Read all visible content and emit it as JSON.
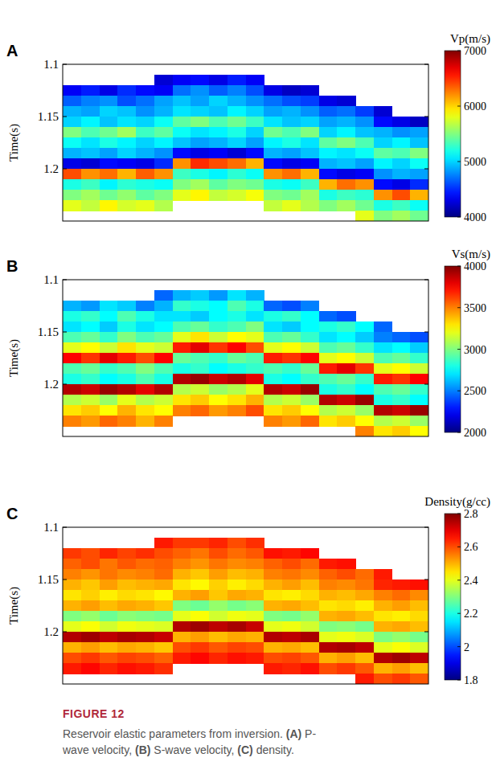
{
  "chart_data": [
    {
      "type": "heatmap",
      "panel_label": "A",
      "y_label": "Time(s)",
      "tick_labels": "y",
      "ylim": [
        1.1,
        1.25
      ],
      "yticks": [
        1.1,
        1.15,
        1.2
      ],
      "y": [
        1.105,
        1.115,
        1.125,
        1.135,
        1.145,
        1.155,
        1.165,
        1.175,
        1.185,
        1.195,
        1.205,
        1.215,
        1.225,
        1.235,
        1.245
      ],
      "colorbar": {
        "title": "Vp(m/s)",
        "range": [
          4000,
          7000
        ],
        "ticks": [
          4000,
          5000,
          6000,
          7000
        ]
      },
      "cells": [
        [
          null,
          null,
          null,
          null,
          null,
          null,
          null,
          null,
          null,
          null,
          null,
          null,
          null,
          null,
          null,
          null,
          null,
          null,
          null,
          null
        ],
        [
          null,
          null,
          null,
          null,
          null,
          4250,
          4350,
          4400,
          4300,
          4450,
          4350,
          null,
          null,
          null,
          null,
          null,
          null,
          null,
          null,
          null
        ],
        [
          4350,
          4450,
          4300,
          4500,
          4400,
          4350,
          4700,
          4800,
          4650,
          4750,
          4600,
          4300,
          4200,
          4250,
          null,
          null,
          null,
          null,
          null,
          null
        ],
        [
          4650,
          4750,
          4800,
          4600,
          4700,
          4850,
          4950,
          4850,
          5000,
          4900,
          4800,
          4700,
          4600,
          4550,
          4300,
          4250,
          null,
          null,
          null,
          null
        ],
        [
          4900,
          4850,
          5000,
          4950,
          4800,
          4900,
          5050,
          5000,
          4950,
          5100,
          5000,
          4850,
          4900,
          4800,
          4650,
          4700,
          4550,
          4250,
          null,
          null
        ],
        [
          5000,
          5100,
          4950,
          5050,
          5000,
          5150,
          5400,
          5500,
          5350,
          5450,
          5300,
          5050,
          4950,
          5000,
          4850,
          4900,
          4800,
          4400,
          4300,
          4200
        ],
        [
          5500,
          5350,
          5450,
          5600,
          5300,
          5400,
          5150,
          5050,
          5100,
          5200,
          5000,
          5450,
          5350,
          5500,
          5000,
          5100,
          4950,
          4900,
          4800,
          4850
        ],
        [
          5150,
          5050,
          5200,
          5100,
          5000,
          5100,
          4950,
          4850,
          4900,
          5000,
          4850,
          5100,
          5200,
          5050,
          5400,
          5500,
          5350,
          5000,
          5100,
          4950
        ],
        [
          4900,
          4950,
          4850,
          5000,
          4900,
          4800,
          4400,
          4300,
          4350,
          4250,
          4400,
          4900,
          4850,
          4950,
          5100,
          5050,
          5150,
          5400,
          5350,
          5500
        ],
        [
          4300,
          4250,
          4400,
          4350,
          4300,
          4500,
          6200,
          6500,
          6400,
          6300,
          6100,
          4400,
          4300,
          4350,
          4900,
          4950,
          4850,
          5100,
          5000,
          5150
        ],
        [
          6400,
          6200,
          6300,
          6100,
          6350,
          6200,
          5300,
          5200,
          5100,
          5250,
          5150,
          6200,
          6300,
          6100,
          4400,
          4300,
          4350,
          4800,
          4900,
          4850
        ],
        [
          5200,
          5300,
          5100,
          5250,
          5200,
          5150,
          5500,
          5600,
          5400,
          5500,
          5450,
          5200,
          5150,
          5300,
          6100,
          6300,
          6200,
          4400,
          4300,
          4500
        ],
        [
          5500,
          5600,
          5450,
          5550,
          5400,
          5500,
          5800,
          5900,
          5700,
          5750,
          5850,
          5500,
          5450,
          5600,
          5200,
          5300,
          5250,
          6200,
          6400,
          6100
        ],
        [
          5800,
          5700,
          5900,
          5750,
          5800,
          5650,
          null,
          null,
          null,
          null,
          null,
          5700,
          5800,
          5650,
          5500,
          5600,
          5450,
          5200,
          5300,
          5150
        ],
        [
          null,
          null,
          null,
          null,
          null,
          null,
          null,
          null,
          null,
          null,
          null,
          null,
          null,
          null,
          null,
          null,
          5800,
          5500,
          5600,
          5450
        ]
      ]
    },
    {
      "type": "heatmap",
      "panel_label": "B",
      "y_label": "Time(s)",
      "tick_labels": "y",
      "ylim": [
        1.1,
        1.25
      ],
      "yticks": [
        1.1,
        1.15,
        1.2
      ],
      "y": [
        1.105,
        1.115,
        1.125,
        1.135,
        1.145,
        1.155,
        1.165,
        1.175,
        1.185,
        1.195,
        1.205,
        1.215,
        1.225,
        1.235,
        1.245
      ],
      "colorbar": {
        "title": "Vs(m/s)",
        "range": [
          2000,
          4000
        ],
        "ticks": [
          2000,
          2500,
          3000,
          3500,
          4000
        ]
      },
      "cells": [
        [
          null,
          null,
          null,
          null,
          null,
          null,
          null,
          null,
          null,
          null,
          null,
          null,
          null,
          null,
          null,
          null,
          null,
          null,
          null,
          null
        ],
        [
          null,
          null,
          null,
          null,
          null,
          2450,
          2600,
          2650,
          2550,
          2700,
          2600,
          null,
          null,
          null,
          null,
          null,
          null,
          null,
          null,
          null
        ],
        [
          2600,
          2550,
          2700,
          2650,
          2500,
          2600,
          2850,
          2800,
          2750,
          2900,
          2800,
          2450,
          2400,
          2500,
          null,
          null,
          null,
          null,
          null,
          null
        ],
        [
          2800,
          2850,
          2750,
          2900,
          2800,
          2700,
          2700,
          2650,
          2750,
          2800,
          2700,
          2800,
          2850,
          2750,
          2450,
          2400,
          null,
          null,
          null,
          null
        ],
        [
          2700,
          2750,
          2650,
          2800,
          2700,
          2750,
          2900,
          2950,
          2850,
          2900,
          3000,
          2700,
          2650,
          2750,
          2800,
          2850,
          2750,
          2450,
          null,
          null
        ],
        [
          2900,
          2950,
          2850,
          3000,
          2900,
          2950,
          3200,
          3300,
          3150,
          3250,
          3200,
          2900,
          2950,
          2850,
          2700,
          2750,
          2650,
          2500,
          2450,
          2400
        ],
        [
          3200,
          3250,
          3150,
          3300,
          3200,
          3150,
          3700,
          3800,
          3650,
          3750,
          3600,
          3200,
          3250,
          3150,
          2900,
          2950,
          2850,
          2700,
          2750,
          2650
        ],
        [
          3750,
          3650,
          3800,
          3700,
          3600,
          3750,
          2950,
          2900,
          2850,
          2950,
          2900,
          3700,
          3650,
          3750,
          3200,
          3250,
          3150,
          2900,
          2950,
          2850
        ],
        [
          2900,
          2950,
          2850,
          2900,
          3000,
          2900,
          2800,
          2850,
          2750,
          2800,
          2850,
          2900,
          2850,
          2950,
          3700,
          3800,
          3650,
          3200,
          3250,
          3150
        ],
        [
          2800,
          2850,
          2750,
          2800,
          2900,
          2800,
          3900,
          3950,
          3850,
          3900,
          3800,
          2800,
          2750,
          2850,
          2900,
          2950,
          2850,
          3700,
          3650,
          3750
        ],
        [
          3900,
          3850,
          3950,
          3900,
          3800,
          3900,
          3100,
          3150,
          3050,
          3100,
          3200,
          3900,
          3850,
          3950,
          2800,
          2850,
          2750,
          2900,
          2950,
          2850
        ],
        [
          3100,
          3150,
          3050,
          3200,
          3100,
          3150,
          3300,
          3350,
          3250,
          3300,
          3400,
          3100,
          3150,
          3050,
          3900,
          3850,
          3950,
          2800,
          2850,
          2750
        ],
        [
          3300,
          3350,
          3250,
          3400,
          3300,
          3250,
          3500,
          3550,
          3450,
          3500,
          3600,
          3300,
          3350,
          3250,
          3100,
          3150,
          3050,
          3900,
          3850,
          3950
        ],
        [
          3500,
          3450,
          3550,
          3500,
          3400,
          3500,
          null,
          null,
          null,
          null,
          null,
          3500,
          3450,
          3550,
          3300,
          3350,
          3250,
          3100,
          3150,
          3050
        ],
        [
          null,
          null,
          null,
          null,
          null,
          null,
          null,
          null,
          null,
          null,
          null,
          null,
          null,
          null,
          null,
          null,
          3500,
          3300,
          3350,
          3250
        ]
      ]
    },
    {
      "type": "heatmap",
      "panel_label": "C",
      "y_label": "Time(s)",
      "tick_labels": "y",
      "ylim": [
        1.1,
        1.25
      ],
      "yticks": [
        1.1,
        1.15,
        1.2
      ],
      "y": [
        1.105,
        1.115,
        1.125,
        1.135,
        1.145,
        1.155,
        1.165,
        1.175,
        1.185,
        1.195,
        1.205,
        1.215,
        1.225,
        1.235,
        1.245
      ],
      "colorbar": {
        "title": "Density(g/cc)",
        "range": [
          1.8,
          2.8
        ],
        "ticks": [
          1.8,
          2,
          2.2,
          2.4,
          2.6,
          2.8
        ]
      },
      "cells": [
        [
          null,
          null,
          null,
          null,
          null,
          null,
          null,
          null,
          null,
          null,
          null,
          null,
          null,
          null,
          null,
          null,
          null,
          null,
          null,
          null
        ],
        [
          null,
          null,
          null,
          null,
          null,
          2.65,
          2.62,
          2.62,
          2.64,
          2.6,
          2.63,
          null,
          null,
          null,
          null,
          null,
          null,
          null,
          null,
          null
        ],
        [
          2.62,
          2.6,
          2.64,
          2.61,
          2.63,
          2.6,
          2.58,
          2.56,
          2.6,
          2.57,
          2.59,
          2.66,
          2.65,
          2.67,
          null,
          null,
          null,
          null,
          null,
          null
        ],
        [
          2.58,
          2.6,
          2.56,
          2.59,
          2.57,
          2.58,
          2.55,
          2.53,
          2.56,
          2.54,
          2.55,
          2.58,
          2.6,
          2.57,
          2.65,
          2.66,
          null,
          null,
          null,
          null
        ],
        [
          2.55,
          2.53,
          2.56,
          2.54,
          2.55,
          2.57,
          2.5,
          2.48,
          2.52,
          2.49,
          2.5,
          2.55,
          2.56,
          2.54,
          2.58,
          2.6,
          2.57,
          2.65,
          null,
          null
        ],
        [
          2.5,
          2.48,
          2.52,
          2.49,
          2.5,
          2.51,
          2.45,
          2.43,
          2.47,
          2.44,
          2.46,
          2.5,
          2.52,
          2.49,
          2.55,
          2.54,
          2.56,
          2.64,
          2.65,
          2.66
        ],
        [
          2.45,
          2.47,
          2.44,
          2.46,
          2.45,
          2.43,
          2.5,
          2.52,
          2.48,
          2.51,
          2.5,
          2.45,
          2.44,
          2.46,
          2.5,
          2.49,
          2.51,
          2.55,
          2.57,
          2.54
        ],
        [
          2.5,
          2.52,
          2.49,
          2.51,
          2.5,
          2.48,
          2.3,
          2.28,
          2.32,
          2.29,
          2.31,
          2.5,
          2.51,
          2.49,
          2.45,
          2.46,
          2.44,
          2.5,
          2.52,
          2.49
        ],
        [
          2.3,
          2.32,
          2.28,
          2.31,
          2.3,
          2.29,
          2.4,
          2.42,
          2.38,
          2.41,
          2.4,
          2.3,
          2.29,
          2.32,
          2.5,
          2.51,
          2.49,
          2.45,
          2.44,
          2.46
        ],
        [
          2.4,
          2.42,
          2.38,
          2.41,
          2.4,
          2.39,
          2.75,
          2.77,
          2.74,
          2.76,
          2.73,
          2.4,
          2.41,
          2.38,
          2.3,
          2.31,
          2.29,
          2.5,
          2.51,
          2.49
        ],
        [
          2.75,
          2.77,
          2.74,
          2.76,
          2.75,
          2.73,
          2.5,
          2.52,
          2.49,
          2.51,
          2.5,
          2.75,
          2.74,
          2.76,
          2.4,
          2.41,
          2.39,
          2.3,
          2.32,
          2.29
        ],
        [
          2.5,
          2.52,
          2.49,
          2.51,
          2.5,
          2.48,
          2.6,
          2.62,
          2.59,
          2.61,
          2.6,
          2.5,
          2.51,
          2.49,
          2.75,
          2.76,
          2.74,
          2.4,
          2.42,
          2.39
        ],
        [
          2.6,
          2.62,
          2.59,
          2.61,
          2.6,
          2.58,
          2.65,
          2.67,
          2.64,
          2.66,
          2.65,
          2.6,
          2.61,
          2.59,
          2.5,
          2.52,
          2.49,
          2.75,
          2.77,
          2.74
        ],
        [
          2.65,
          2.67,
          2.64,
          2.66,
          2.65,
          2.63,
          null,
          null,
          null,
          null,
          null,
          2.65,
          2.64,
          2.66,
          2.6,
          2.62,
          2.59,
          2.5,
          2.52,
          2.49
        ],
        [
          null,
          null,
          null,
          null,
          null,
          null,
          null,
          null,
          null,
          null,
          null,
          null,
          null,
          null,
          null,
          null,
          2.65,
          2.6,
          2.62,
          2.59
        ]
      ]
    }
  ],
  "caption": {
    "figure": "FIGURE 12",
    "text": "Reservoir elastic parameters from inversion. (A) P-wave velocity, (B) S-wave velocity, (C) density."
  }
}
